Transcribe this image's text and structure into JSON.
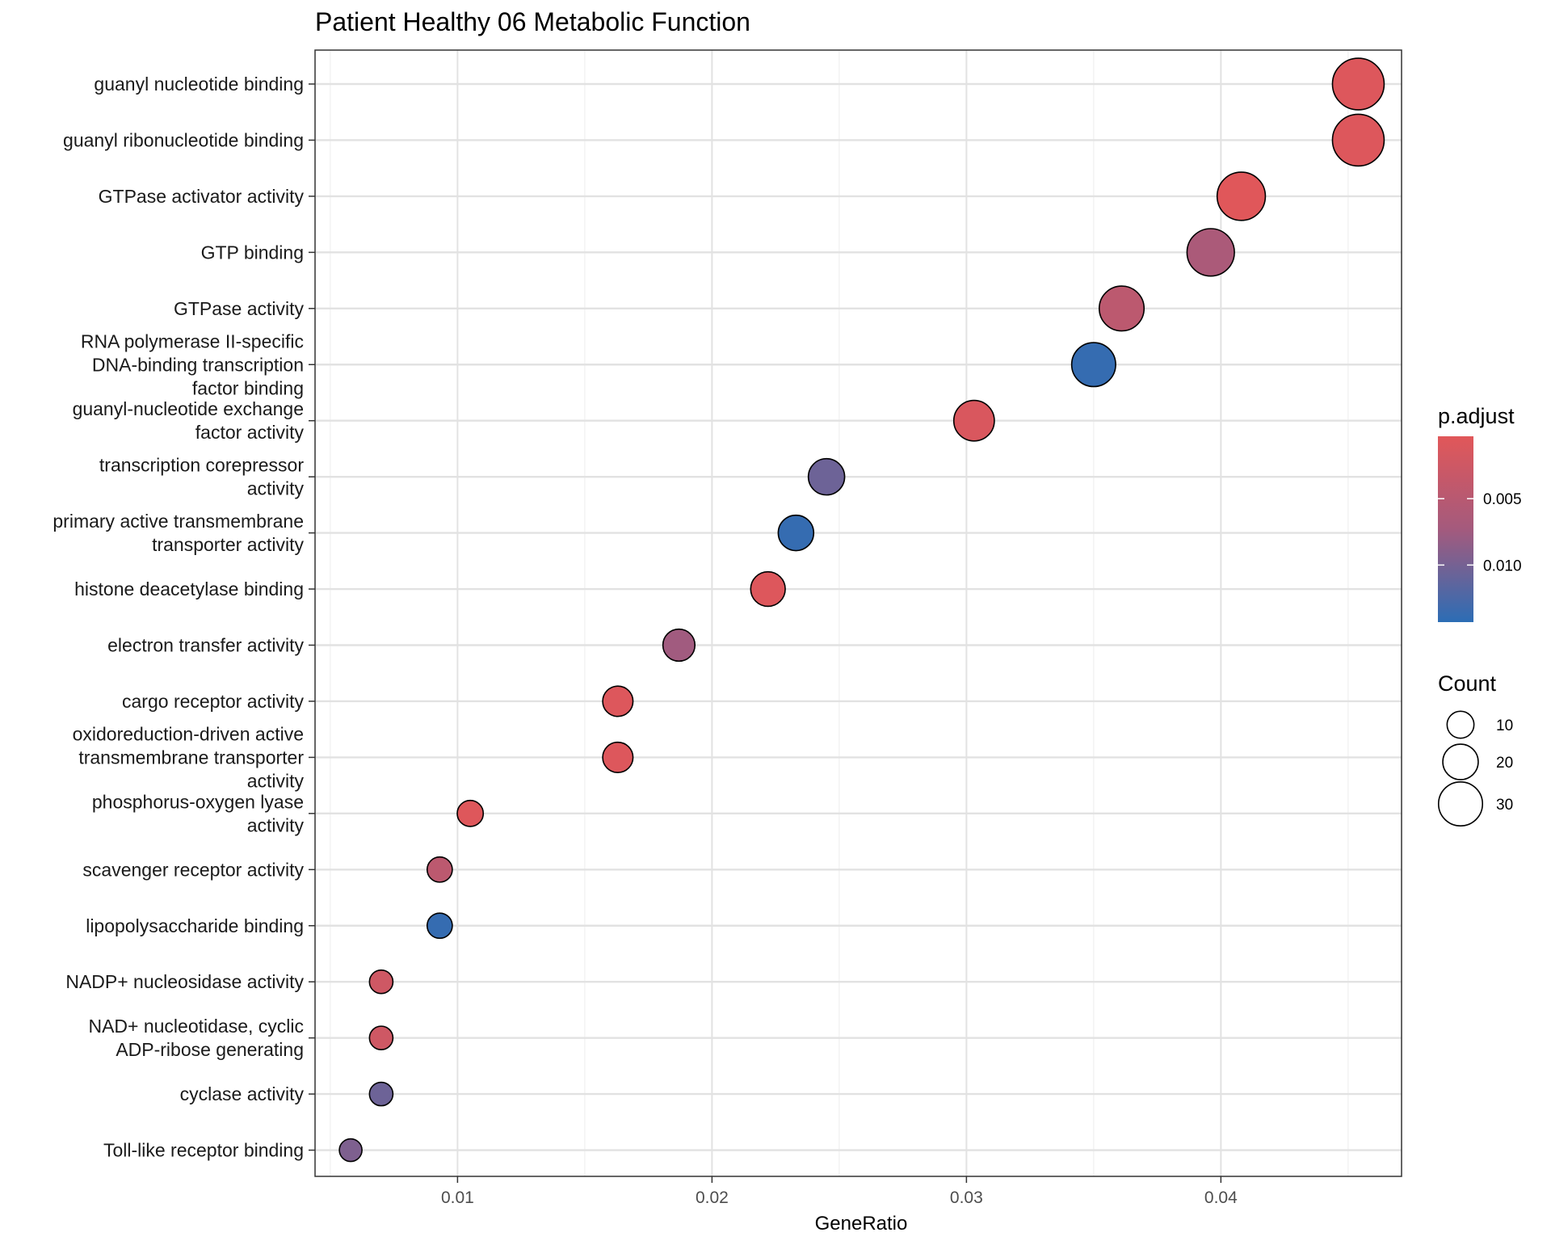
{
  "chart_data": {
    "type": "scatter",
    "title": "Patient Healthy 06 Metabolic Function",
    "xlabel": "GeneRatio",
    "ylabel": "",
    "xlim": [
      0.0044,
      0.0471
    ],
    "xticks": [
      0.01,
      0.02,
      0.03,
      0.04
    ],
    "xtick_labels": [
      "0.01",
      "0.02",
      "0.03",
      "0.04"
    ],
    "grid": true,
    "legend_position": "right",
    "color_scale": {
      "name": "p.adjust",
      "low_color": "#e15759",
      "mid_color": "#a45a7d",
      "high_color": "#2c6db5",
      "range": [
        0.0003,
        0.0143
      ],
      "ticks": [
        0.005,
        0.01
      ],
      "tick_labels": [
        "0.005",
        "0.010"
      ]
    },
    "size_scale": {
      "name": "Count",
      "breaks": [
        10,
        20,
        30
      ],
      "break_labels": [
        "10",
        "20",
        "30"
      ]
    },
    "points": [
      {
        "label": [
          "guanyl nucleotide binding"
        ],
        "x": 0.0454,
        "count": 39,
        "p_adjust": 0.0008
      },
      {
        "label": [
          "guanyl ribonucleotide binding"
        ],
        "x": 0.0454,
        "count": 39,
        "p_adjust": 0.0008
      },
      {
        "label": [
          "GTPase activator activity"
        ],
        "x": 0.0408,
        "count": 35,
        "p_adjust": 0.0004
      },
      {
        "label": [
          "GTP binding"
        ],
        "x": 0.0396,
        "count": 34,
        "p_adjust": 0.0065
      },
      {
        "label": [
          "GTPase activity"
        ],
        "x": 0.0361,
        "count": 31,
        "p_adjust": 0.0045
      },
      {
        "label": [
          "RNA polymerase II-specific",
          "DNA-binding transcription",
          "factor binding"
        ],
        "x": 0.035,
        "count": 30,
        "p_adjust": 0.0138
      },
      {
        "label": [
          "guanyl-nucleotide exchange",
          "factor activity"
        ],
        "x": 0.0303,
        "count": 26,
        "p_adjust": 0.0012
      },
      {
        "label": [
          "transcription corepressor",
          "activity"
        ],
        "x": 0.0245,
        "count": 21,
        "p_adjust": 0.0105
      },
      {
        "label": [
          "primary active transmembrane",
          "transporter activity"
        ],
        "x": 0.0233,
        "count": 20,
        "p_adjust": 0.0138
      },
      {
        "label": [
          "histone deacetylase binding"
        ],
        "x": 0.0222,
        "count": 19,
        "p_adjust": 0.0008
      },
      {
        "label": [
          "electron transfer activity"
        ],
        "x": 0.0187,
        "count": 16,
        "p_adjust": 0.0075
      },
      {
        "label": [
          "cargo receptor activity"
        ],
        "x": 0.0163,
        "count": 14,
        "p_adjust": 0.0008
      },
      {
        "label": [
          "oxidoreduction-driven active",
          "transmembrane transporter",
          "activity"
        ],
        "x": 0.0163,
        "count": 14,
        "p_adjust": 0.0008
      },
      {
        "label": [
          "phosphorus-oxygen lyase",
          "activity"
        ],
        "x": 0.0105,
        "count": 9,
        "p_adjust": 0.0006
      },
      {
        "label": [
          "scavenger receptor activity"
        ],
        "x": 0.0093,
        "count": 8,
        "p_adjust": 0.0045
      },
      {
        "label": [
          "lipopolysaccharide binding"
        ],
        "x": 0.0093,
        "count": 8,
        "p_adjust": 0.0138
      },
      {
        "label": [
          "NADP+ nucleosidase activity"
        ],
        "x": 0.007,
        "count": 6,
        "p_adjust": 0.0025
      },
      {
        "label": [
          "NAD+ nucleotidase, cyclic",
          "ADP-ribose generating"
        ],
        "x": 0.007,
        "count": 6,
        "p_adjust": 0.0025
      },
      {
        "label": [
          "cyclase activity"
        ],
        "x": 0.007,
        "count": 6,
        "p_adjust": 0.0105
      },
      {
        "label": [
          "Toll-like receptor binding"
        ],
        "x": 0.0058,
        "count": 5,
        "p_adjust": 0.0095
      }
    ]
  }
}
